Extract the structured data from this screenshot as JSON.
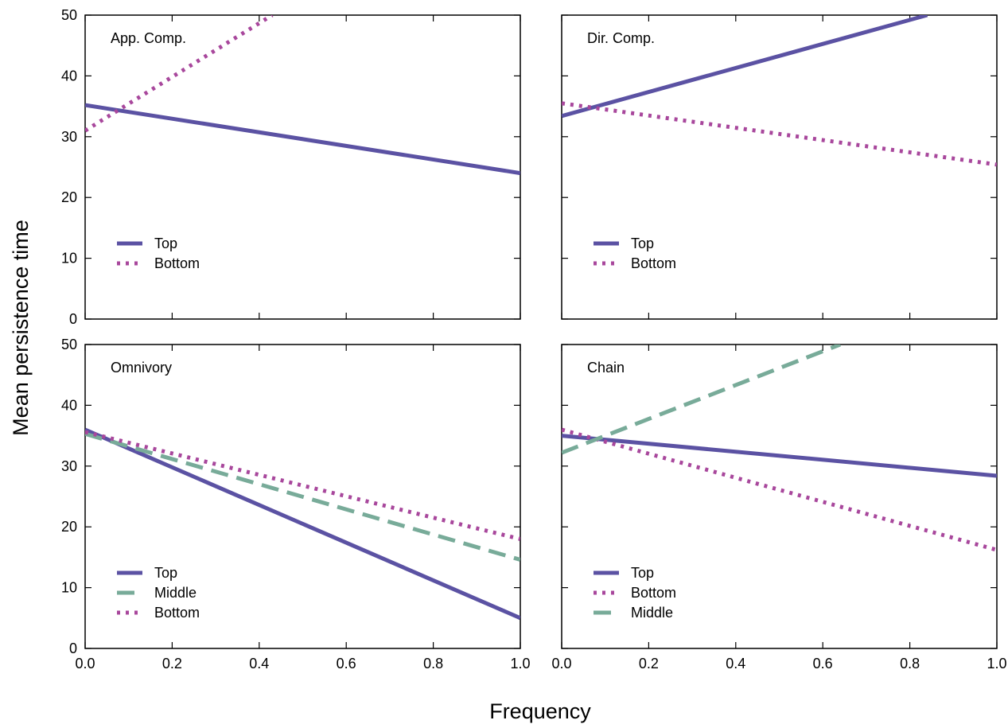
{
  "figure": {
    "xlabel": "Frequency",
    "ylabel": "Mean persistence time"
  },
  "colors": {
    "Top": "#5b52a3",
    "Bottom": "#a8479c",
    "Middle": "#78ab99"
  },
  "chart_data": [
    {
      "type": "line",
      "panel": "App. Comp.",
      "xlim": [
        0,
        1.0
      ],
      "ylim": [
        0,
        50
      ],
      "xticks": [
        "0.0",
        "0.2",
        "0.4",
        "0.6",
        "0.8",
        "1.0"
      ],
      "yticks": [
        "0",
        "10",
        "20",
        "30",
        "40",
        "50"
      ],
      "legend": "bottom-left",
      "series": [
        {
          "name": "Top",
          "style": "solid",
          "x": [
            0,
            1.0
          ],
          "y": [
            35.2,
            24.0
          ]
        },
        {
          "name": "Bottom",
          "style": "dotted",
          "x": [
            0,
            0.43
          ],
          "y": [
            31.0,
            50.0
          ]
        }
      ]
    },
    {
      "type": "line",
      "panel": "Dir. Comp.",
      "xlim": [
        0,
        1.0
      ],
      "ylim": [
        0,
        50
      ],
      "xticks": [
        "0.0",
        "0.2",
        "0.4",
        "0.6",
        "0.8",
        "1.0"
      ],
      "yticks": [
        "0",
        "10",
        "20",
        "30",
        "40",
        "50"
      ],
      "legend": "bottom-left",
      "series": [
        {
          "name": "Top",
          "style": "solid",
          "x": [
            0,
            0.84
          ],
          "y": [
            33.4,
            50.0
          ]
        },
        {
          "name": "Bottom",
          "style": "dotted",
          "x": [
            0,
            1.0
          ],
          "y": [
            35.5,
            25.4
          ]
        }
      ]
    },
    {
      "type": "line",
      "panel": "Omnivory",
      "xlim": [
        0,
        1.0
      ],
      "ylim": [
        0,
        50
      ],
      "xticks": [
        "0.0",
        "0.2",
        "0.4",
        "0.6",
        "0.8",
        "1.0"
      ],
      "yticks": [
        "0",
        "10",
        "20",
        "30",
        "40",
        "50"
      ],
      "legend": "bottom-left",
      "series": [
        {
          "name": "Top",
          "style": "solid",
          "x": [
            0,
            1.0
          ],
          "y": [
            36.0,
            5.0
          ]
        },
        {
          "name": "Middle",
          "style": "dashed",
          "x": [
            0,
            1.0
          ],
          "y": [
            35.3,
            14.6
          ]
        },
        {
          "name": "Bottom",
          "style": "dotted",
          "x": [
            0,
            1.0
          ],
          "y": [
            35.6,
            18.0
          ]
        }
      ]
    },
    {
      "type": "line",
      "panel": "Chain",
      "xlim": [
        0,
        1.0
      ],
      "ylim": [
        0,
        50
      ],
      "xticks": [
        "0.0",
        "0.2",
        "0.4",
        "0.6",
        "0.8",
        "1.0"
      ],
      "yticks": [
        "0",
        "10",
        "20",
        "30",
        "40",
        "50"
      ],
      "legend": "bottom-left",
      "series": [
        {
          "name": "Top",
          "style": "solid",
          "x": [
            0,
            1.0
          ],
          "y": [
            35.0,
            28.4
          ]
        },
        {
          "name": "Bottom",
          "style": "dotted",
          "x": [
            0,
            1.0
          ],
          "y": [
            36.0,
            16.2
          ]
        },
        {
          "name": "Middle",
          "style": "dashed",
          "x": [
            0,
            0.64
          ],
          "y": [
            32.2,
            50.0
          ]
        }
      ]
    }
  ]
}
